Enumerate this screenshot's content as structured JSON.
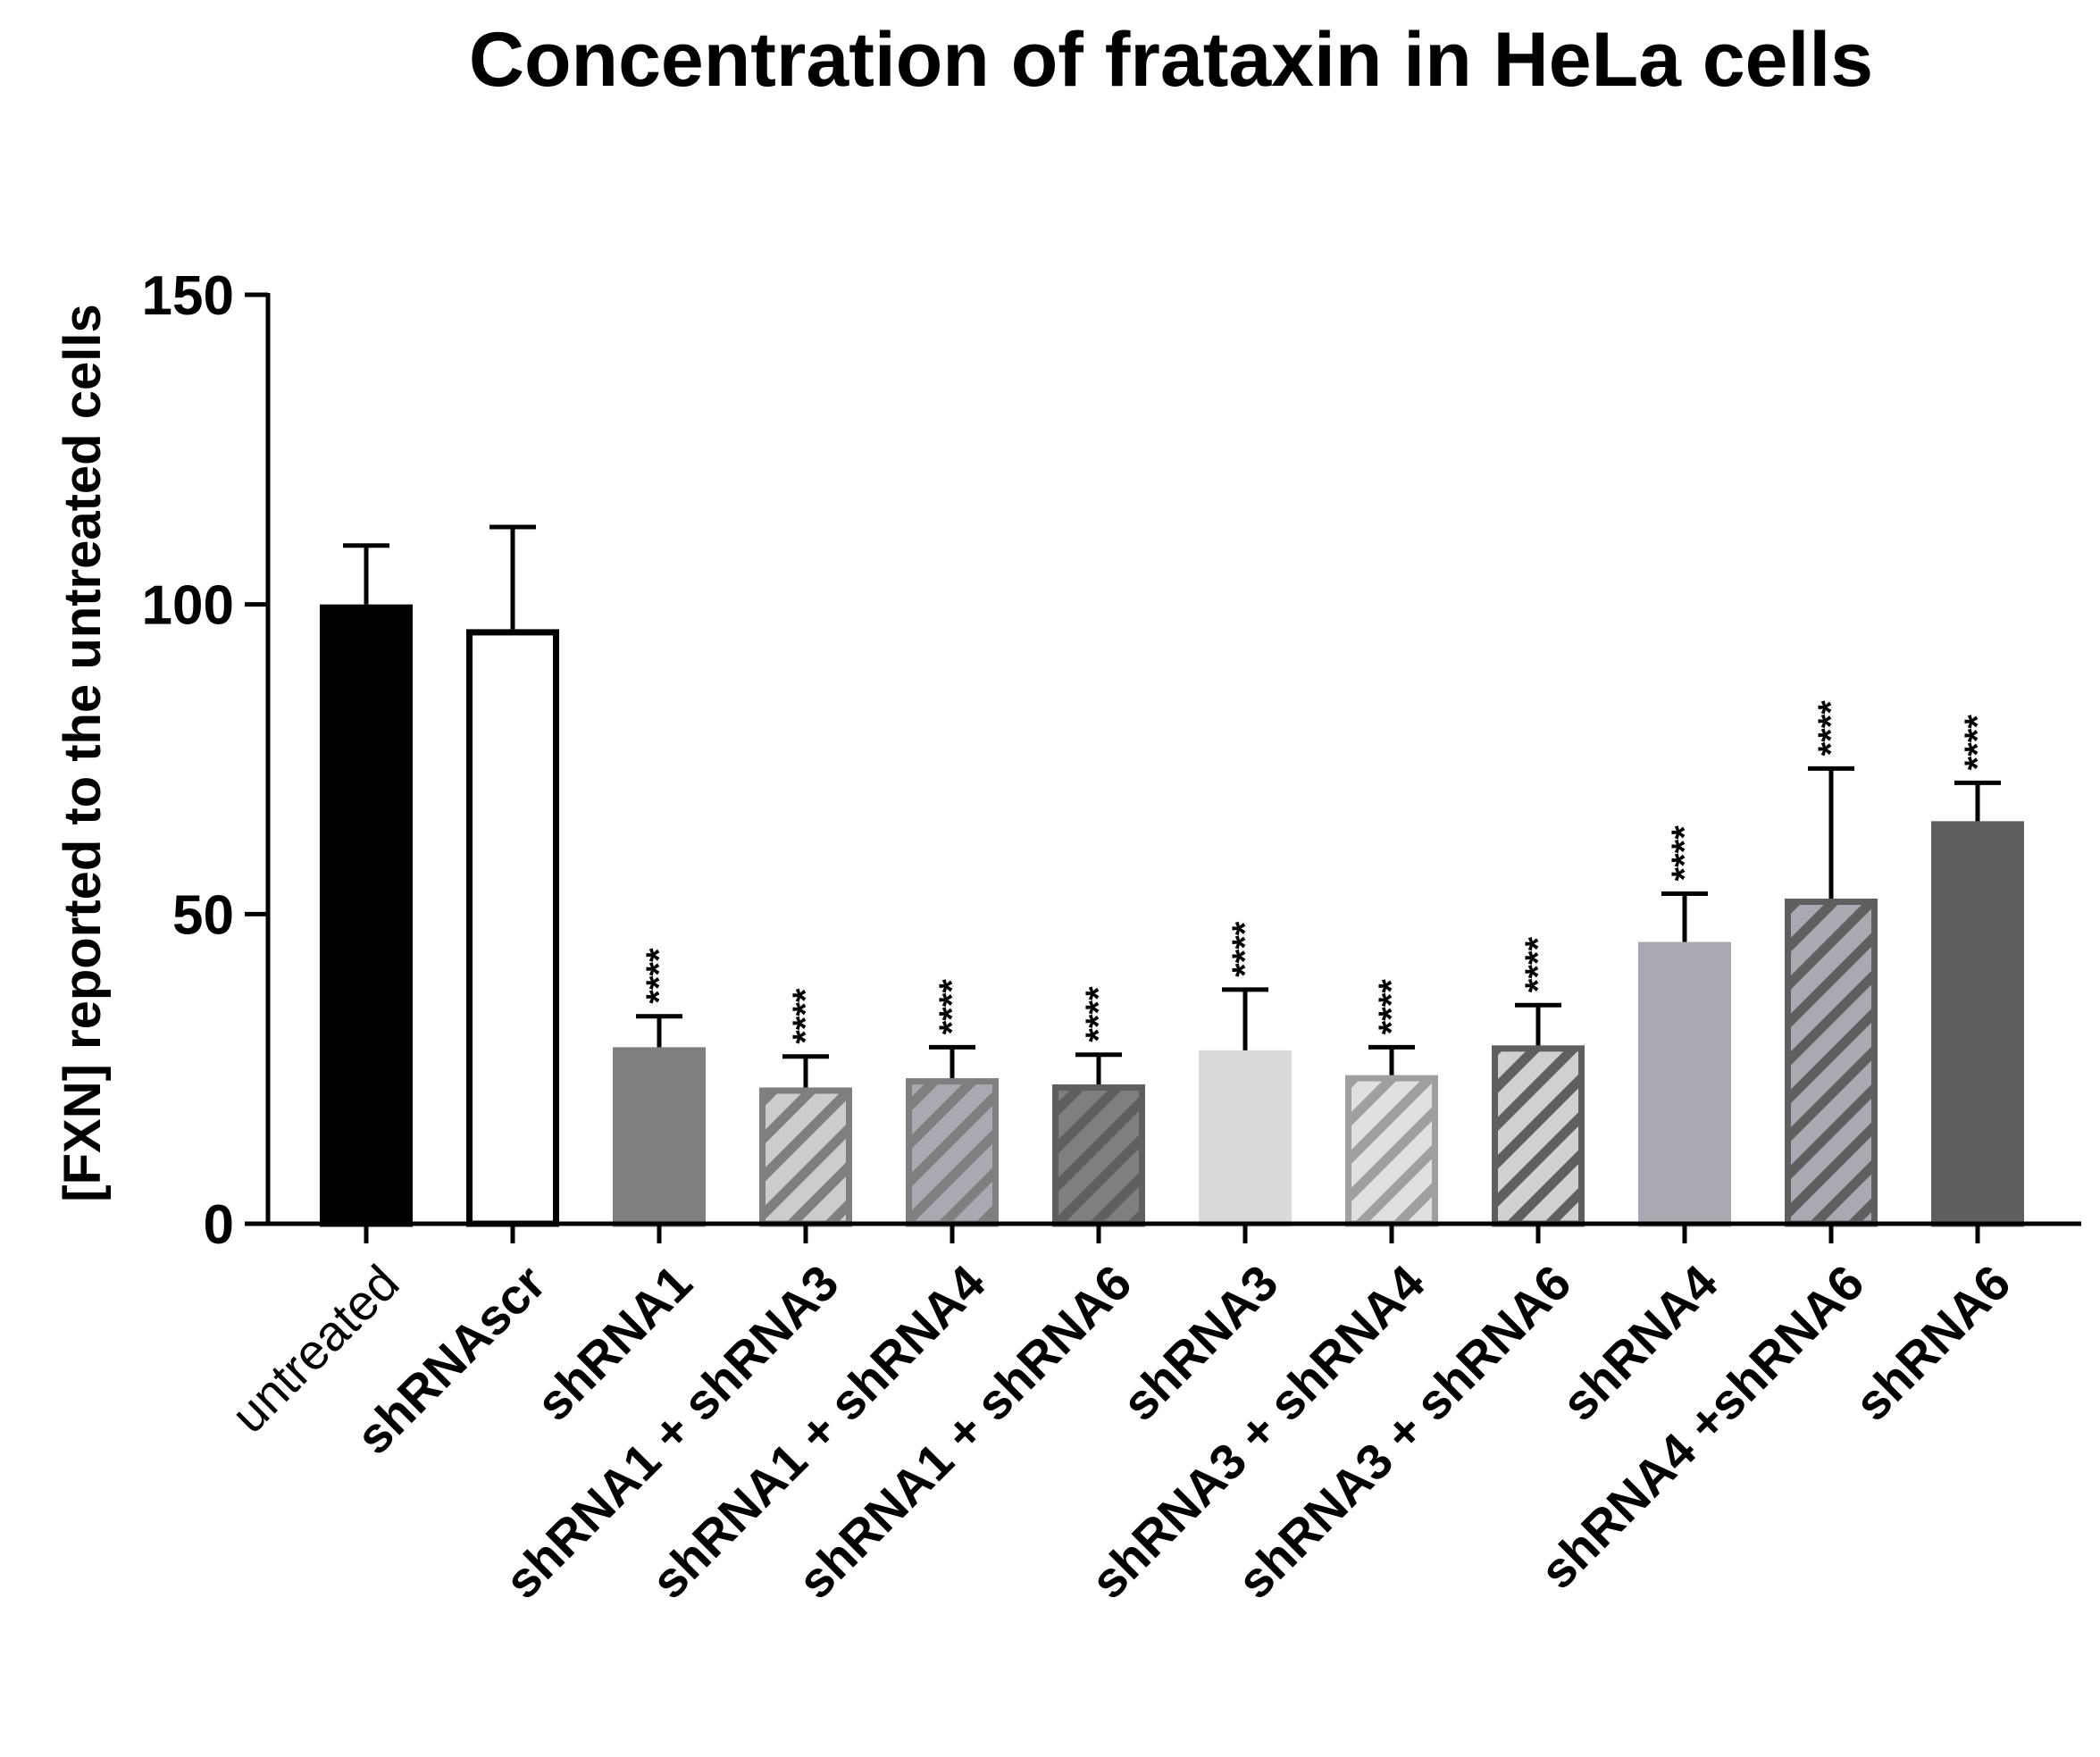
{
  "chart_data": {
    "type": "bar",
    "title": "Concentration of frataxin in HeLa cells",
    "ylabel": "[FXN] reported to the untreated cells",
    "xlabel": "",
    "ylim": [
      0,
      150
    ],
    "yticks": [
      0,
      50,
      100,
      150
    ],
    "grid": false,
    "categories": [
      "untreated",
      "shRNAscr",
      "shRNA1",
      "shRNA1 + shRNA3",
      "shRNA1 + shRNA4",
      "shRNA1 + shRNA6",
      "shRNA3",
      "shRNA3 + shRNA4",
      "shRNA3 + shRNA6",
      "shRNA4",
      "shRNA4 +shRNA6",
      "shRNA6"
    ],
    "values": [
      100,
      96,
      28.5,
      22,
      23.5,
      22.5,
      28,
      24,
      28.8,
      45.5,
      52.5,
      65
    ],
    "errors": [
      9.5,
      16.5,
      5,
      5,
      5,
      4.8,
      9.8,
      4.5,
      6.5,
      7.8,
      21,
      6.2
    ],
    "significance": [
      "",
      "",
      "****",
      "****",
      "****",
      "****",
      "****",
      "****",
      "****",
      "****",
      "****",
      "****"
    ],
    "styles": [
      {
        "fill": "#000000",
        "stroke": "#000000",
        "pattern": "none"
      },
      {
        "fill": "#ffffff",
        "stroke": "#000000",
        "pattern": "none"
      },
      {
        "fill": "#7f7f7f",
        "stroke": "#7f7f7f",
        "pattern": "none"
      },
      {
        "fill": "#cccccc",
        "stroke": "#7f7f7f",
        "pattern": "hatch",
        "hatch_color": "#7f7f7f"
      },
      {
        "fill": "#a9a9b1",
        "stroke": "#7f7f7f",
        "pattern": "hatch",
        "hatch_color": "#7f7f7f"
      },
      {
        "fill": "#7f7f7f",
        "stroke": "#5f5f5f",
        "pattern": "hatch",
        "hatch_color": "#5f5f5f"
      },
      {
        "fill": "#d9d9d9",
        "stroke": "#d9d9d9",
        "pattern": "none"
      },
      {
        "fill": "#e0e0e0",
        "stroke": "#9f9f9f",
        "pattern": "hatch",
        "hatch_color": "#9f9f9f"
      },
      {
        "fill": "#d0d0d0",
        "stroke": "#5f5f5f",
        "pattern": "hatch",
        "hatch_color": "#5f5f5f"
      },
      {
        "fill": "#a9a9b1",
        "stroke": "#a9a9b1",
        "pattern": "none"
      },
      {
        "fill": "#a9a9b1",
        "stroke": "#5f5f5f",
        "pattern": "hatch",
        "hatch_color": "#5f5f5f"
      },
      {
        "fill": "#5f5f5f",
        "stroke": "#5f5f5f",
        "pattern": "none"
      }
    ],
    "error_colors": [
      "#000000",
      "#000000",
      "#000000",
      "#000000",
      "#000000",
      "#000000",
      "#000000",
      "#000000",
      "#000000",
      "#000000",
      "#000000",
      "#000000"
    ]
  }
}
